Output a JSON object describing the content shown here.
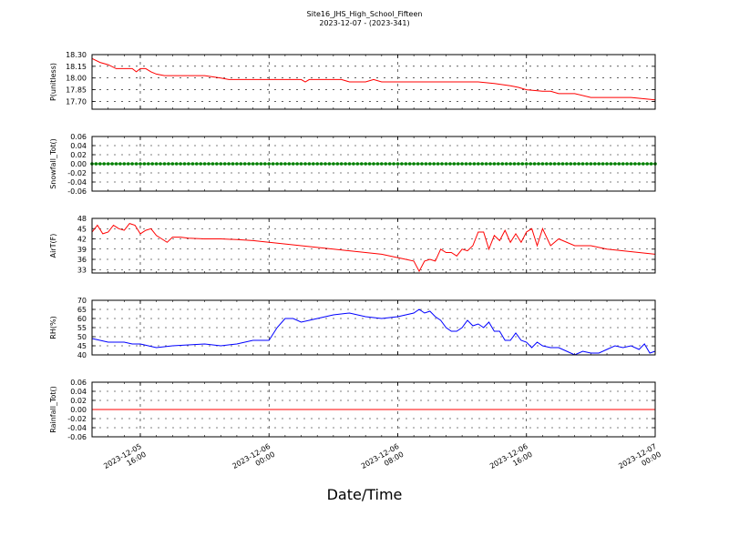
{
  "figure": {
    "title": "Site16_JHS_High_School_Fifteen",
    "subtitle": "2023-12-07 - (2023-341)",
    "xlabel": "Date/Time"
  },
  "x_ticks": [
    {
      "time": "2023-12-05T16:00",
      "line1": "2023-12-05",
      "line2": "16:00"
    },
    {
      "time": "2023-12-06T00:00",
      "line1": "2023-12-06",
      "line2": "00:00"
    },
    {
      "time": "2023-12-06T08:00",
      "line1": "2023-12-06",
      "line2": "08:00"
    },
    {
      "time": "2023-12-06T16:00",
      "line1": "2023-12-06",
      "line2": "16:00"
    },
    {
      "time": "2023-12-07T00:00",
      "line1": "2023-12-07",
      "line2": "00:00"
    }
  ],
  "chart_data": [
    {
      "type": "line",
      "ylabel": "P(unitless)",
      "xlim": [
        "2023-12-05T13:00",
        "2023-12-07T00:00"
      ],
      "ylim": [
        17.6,
        18.3
      ],
      "yticks": [
        "17.70",
        "17.85",
        "18.00",
        "18.15",
        "18.30"
      ],
      "grid": true,
      "color": "#ff0000",
      "x": [
        "2023-12-05T13:00",
        "2023-12-05T13:30",
        "2023-12-05T14:00",
        "2023-12-05T14:30",
        "2023-12-05T15:30",
        "2023-12-05T15:45",
        "2023-12-05T16:00",
        "2023-12-05T16:20",
        "2023-12-05T16:40",
        "2023-12-05T17:00",
        "2023-12-05T17:30",
        "2023-12-05T18:30",
        "2023-12-05T20:00",
        "2023-12-05T21:00",
        "2023-12-05T21:30",
        "2023-12-06T00:00",
        "2023-12-06T02:00",
        "2023-12-06T02:15",
        "2023-12-06T02:30",
        "2023-12-06T04:30",
        "2023-12-06T05:00",
        "2023-12-06T06:00",
        "2023-12-06T06:30",
        "2023-12-06T07:00",
        "2023-12-06T09:00",
        "2023-12-06T11:00",
        "2023-12-06T13:00",
        "2023-12-06T14:00",
        "2023-12-06T15:00",
        "2023-12-06T15:30",
        "2023-12-06T16:00",
        "2023-12-06T17:00",
        "2023-12-06T17:30",
        "2023-12-06T18:00",
        "2023-12-06T19:00",
        "2023-12-06T20:00",
        "2023-12-06T21:00",
        "2023-12-06T22:00",
        "2023-12-06T22:30",
        "2023-12-06T23:30",
        "2023-12-07T00:00"
      ],
      "values": [
        18.25,
        18.2,
        18.17,
        18.12,
        18.12,
        18.08,
        18.12,
        18.12,
        18.08,
        18.05,
        18.03,
        18.03,
        18.03,
        18.0,
        17.98,
        17.98,
        17.98,
        17.95,
        17.98,
        17.98,
        17.95,
        17.95,
        17.98,
        17.95,
        17.95,
        17.95,
        17.95,
        17.93,
        17.9,
        17.88,
        17.85,
        17.83,
        17.83,
        17.8,
        17.8,
        17.75,
        17.75,
        17.75,
        17.75,
        17.73,
        17.72
      ]
    },
    {
      "type": "scatter",
      "ylabel": "Snowfall_Tot()",
      "xlim": [
        "2023-12-05T13:00",
        "2023-12-07T00:00"
      ],
      "ylim": [
        -0.06,
        0.06
      ],
      "yticks": [
        "-0.06",
        "-0.04",
        "-0.02",
        "0.00",
        "0.02",
        "0.04",
        "0.06"
      ],
      "grid": true,
      "color": "#008000",
      "x_start": "2023-12-05T13:00",
      "x_end": "2023-12-07T00:00",
      "interval_minutes": 15,
      "constant_value": 0.0
    },
    {
      "type": "line",
      "ylabel": "AirT(F)",
      "xlim": [
        "2023-12-05T13:00",
        "2023-12-07T00:00"
      ],
      "ylim": [
        32,
        48
      ],
      "yticks": [
        "33",
        "36",
        "39",
        "42",
        "45",
        "48"
      ],
      "grid": true,
      "color": "#ff0000",
      "x": [
        "2023-12-05T13:00",
        "2023-12-05T13:20",
        "2023-12-05T13:40",
        "2023-12-05T14:00",
        "2023-12-05T14:20",
        "2023-12-05T14:40",
        "2023-12-05T15:00",
        "2023-12-05T15:20",
        "2023-12-05T15:40",
        "2023-12-05T16:00",
        "2023-12-05T16:20",
        "2023-12-05T16:40",
        "2023-12-05T17:00",
        "2023-12-05T17:20",
        "2023-12-05T17:40",
        "2023-12-05T18:00",
        "2023-12-05T18:30",
        "2023-12-05T19:00",
        "2023-12-05T20:00",
        "2023-12-05T21:00",
        "2023-12-05T22:00",
        "2023-12-05T23:00",
        "2023-12-06T00:00",
        "2023-12-06T01:00",
        "2023-12-06T02:00",
        "2023-12-06T03:00",
        "2023-12-06T04:00",
        "2023-12-06T05:00",
        "2023-12-06T06:00",
        "2023-12-06T07:00",
        "2023-12-06T08:00",
        "2023-12-06T08:30",
        "2023-12-06T09:00",
        "2023-12-06T09:20",
        "2023-12-06T09:40",
        "2023-12-06T10:00",
        "2023-12-06T10:20",
        "2023-12-06T10:40",
        "2023-12-06T11:00",
        "2023-12-06T11:20",
        "2023-12-06T11:40",
        "2023-12-06T12:00",
        "2023-12-06T12:20",
        "2023-12-06T12:40",
        "2023-12-06T13:00",
        "2023-12-06T13:20",
        "2023-12-06T13:40",
        "2023-12-06T14:00",
        "2023-12-06T14:20",
        "2023-12-06T14:40",
        "2023-12-06T15:00",
        "2023-12-06T15:20",
        "2023-12-06T15:40",
        "2023-12-06T16:00",
        "2023-12-06T16:20",
        "2023-12-06T16:40",
        "2023-12-06T17:00",
        "2023-12-06T17:30",
        "2023-12-06T18:00",
        "2023-12-06T19:00",
        "2023-12-06T20:00",
        "2023-12-06T21:00",
        "2023-12-06T22:00",
        "2023-12-06T23:00",
        "2023-12-07T00:00"
      ],
      "values": [
        44,
        46,
        43.5,
        44,
        46,
        45,
        44.5,
        46.5,
        46,
        43.5,
        44.5,
        45,
        43,
        42,
        41,
        42.5,
        42.5,
        42.2,
        42,
        42,
        41.8,
        41.5,
        41,
        40.5,
        40,
        39.5,
        39,
        38.5,
        38,
        37.5,
        36.5,
        36,
        35.5,
        32.5,
        35.5,
        36,
        35.5,
        39,
        38,
        38,
        37,
        39,
        38.5,
        40,
        44,
        44,
        39,
        43,
        41.5,
        44.5,
        41,
        43.5,
        41,
        44,
        45,
        40,
        45,
        40,
        42,
        40,
        40,
        39,
        38.5,
        38,
        37.5
      ]
    },
    {
      "type": "line",
      "ylabel": "RH(%)",
      "xlim": [
        "2023-12-05T13:00",
        "2023-12-07T00:00"
      ],
      "ylim": [
        40,
        70
      ],
      "yticks": [
        "40",
        "45",
        "50",
        "55",
        "60",
        "65",
        "70"
      ],
      "grid": true,
      "color": "#0000ff",
      "x": [
        "2023-12-05T13:00",
        "2023-12-05T14:00",
        "2023-12-05T15:00",
        "2023-12-05T15:30",
        "2023-12-05T16:00",
        "2023-12-05T17:00",
        "2023-12-05T18:00",
        "2023-12-05T19:00",
        "2023-12-05T20:00",
        "2023-12-05T21:00",
        "2023-12-05T22:00",
        "2023-12-05T23:00",
        "2023-12-05T23:30",
        "2023-12-06T00:00",
        "2023-12-06T00:30",
        "2023-12-06T01:00",
        "2023-12-06T01:30",
        "2023-12-06T02:00",
        "2023-12-06T02:30",
        "2023-12-06T03:00",
        "2023-12-06T04:00",
        "2023-12-06T05:00",
        "2023-12-06T06:00",
        "2023-12-06T07:00",
        "2023-12-06T08:00",
        "2023-12-06T09:00",
        "2023-12-06T09:20",
        "2023-12-06T09:40",
        "2023-12-06T10:00",
        "2023-12-06T10:20",
        "2023-12-06T10:40",
        "2023-12-06T11:00",
        "2023-12-06T11:20",
        "2023-12-06T11:40",
        "2023-12-06T12:00",
        "2023-12-06T12:20",
        "2023-12-06T12:40",
        "2023-12-06T13:00",
        "2023-12-06T13:20",
        "2023-12-06T13:40",
        "2023-12-06T14:00",
        "2023-12-06T14:20",
        "2023-12-06T14:40",
        "2023-12-06T15:00",
        "2023-12-06T15:20",
        "2023-12-06T15:40",
        "2023-12-06T16:00",
        "2023-12-06T16:20",
        "2023-12-06T16:40",
        "2023-12-06T17:00",
        "2023-12-06T17:30",
        "2023-12-06T18:00",
        "2023-12-06T18:30",
        "2023-12-06T19:00",
        "2023-12-06T19:30",
        "2023-12-06T20:00",
        "2023-12-06T20:30",
        "2023-12-06T21:00",
        "2023-12-06T21:30",
        "2023-12-06T22:00",
        "2023-12-06T22:30",
        "2023-12-06T23:00",
        "2023-12-06T23:20",
        "2023-12-06T23:40",
        "2023-12-07T00:00"
      ],
      "values": [
        49,
        47,
        47,
        46,
        46,
        44,
        45,
        45.5,
        46,
        45,
        46,
        48,
        48,
        48,
        55,
        60,
        60,
        58,
        59,
        60,
        62,
        63,
        61,
        60,
        61,
        63,
        65,
        63,
        64,
        61,
        59,
        55,
        53,
        53,
        55,
        59,
        56,
        57,
        55,
        58,
        53,
        53,
        48,
        48,
        52,
        48,
        47,
        44,
        47,
        45,
        44,
        44,
        42,
        40,
        42,
        41,
        41,
        43,
        45,
        44,
        45,
        43,
        46,
        41,
        42
      ]
    },
    {
      "type": "line",
      "ylabel": "Rainfall_Tot()",
      "xlim": [
        "2023-12-05T13:00",
        "2023-12-07T00:00"
      ],
      "ylim": [
        -0.06,
        0.06
      ],
      "yticks": [
        "-0.06",
        "-0.04",
        "-0.02",
        "0.00",
        "0.02",
        "0.04",
        "0.06"
      ],
      "grid": true,
      "color": "#ff0000",
      "x": [
        "2023-12-05T13:00",
        "2023-12-07T00:00"
      ],
      "values": [
        0.0,
        0.0
      ]
    }
  ]
}
